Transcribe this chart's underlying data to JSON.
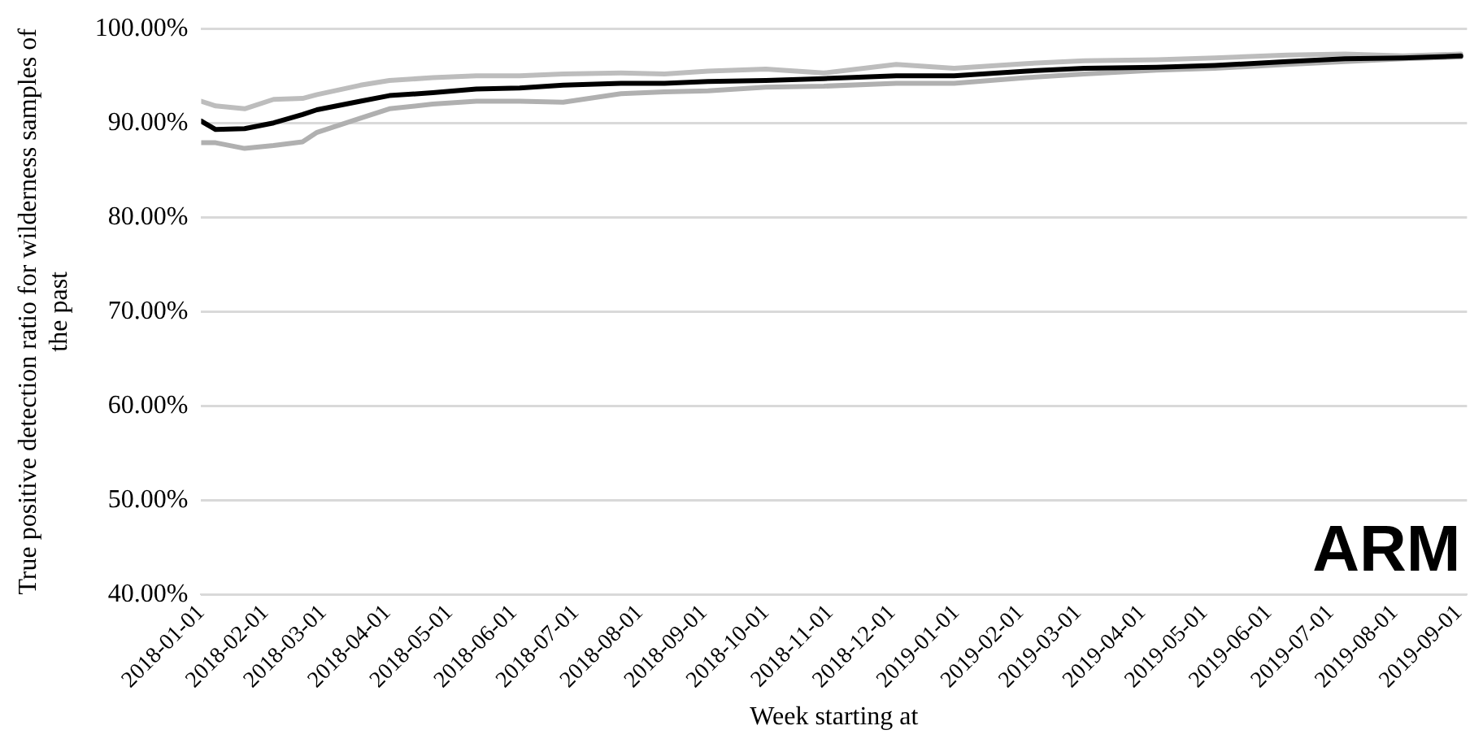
{
  "chart_data": {
    "type": "line",
    "xlabel": "Week starting at",
    "ylabel": "True positive detection ratio for wilderness samples of the past",
    "annotations": [
      "ARM"
    ],
    "x": [
      "2018-01-01",
      "2018-01-08",
      "2018-01-22",
      "2018-02-05",
      "2018-02-19",
      "2018-02-26",
      "2018-03-19",
      "2018-04-02",
      "2018-04-23",
      "2018-05-14",
      "2018-06-04",
      "2018-06-25",
      "2018-07-23",
      "2018-08-13",
      "2018-09-03",
      "2018-10-01",
      "2018-10-29",
      "2018-12-03",
      "2018-12-31",
      "2019-02-04",
      "2019-03-04",
      "2019-04-08",
      "2019-05-06",
      "2019-06-10",
      "2019-07-08",
      "2019-08-05",
      "2019-09-02"
    ],
    "series": [
      {
        "color": "#bdbdbd",
        "values": [
          92.3,
          91.8,
          91.5,
          92.5,
          92.6,
          93.0,
          94.0,
          94.5,
          94.8,
          95.0,
          95.0,
          95.2,
          95.3,
          95.2,
          95.5,
          95.7,
          95.3,
          96.2,
          95.8,
          96.3,
          96.6,
          96.7,
          96.9,
          97.2,
          97.3,
          97.1,
          97.3
        ]
      },
      {
        "color": "#b0b0b0",
        "values": [
          87.9,
          87.9,
          87.3,
          87.6,
          88.0,
          89.0,
          90.5,
          91.5,
          92.0,
          92.3,
          92.3,
          92.2,
          93.1,
          93.3,
          93.4,
          93.8,
          93.9,
          94.2,
          94.2,
          94.8,
          95.2,
          95.6,
          95.8,
          96.2,
          96.5,
          96.8,
          97.0
        ]
      },
      {
        "color": "#000000",
        "values": [
          90.2,
          89.3,
          89.4,
          90.0,
          90.9,
          91.4,
          92.3,
          92.9,
          93.2,
          93.6,
          93.7,
          94.0,
          94.2,
          94.2,
          94.4,
          94.5,
          94.7,
          95.0,
          95.0,
          95.5,
          95.8,
          95.9,
          96.1,
          96.5,
          96.8,
          96.9,
          97.1
        ]
      }
    ],
    "xlim": [
      "2018-01-01",
      "2019-09-05"
    ],
    "xticks": [
      "2018-01-01",
      "2018-02-01",
      "2018-03-01",
      "2018-04-01",
      "2018-05-01",
      "2018-06-01",
      "2018-07-01",
      "2018-08-01",
      "2018-09-01",
      "2018-10-01",
      "2018-11-01",
      "2018-12-01",
      "2019-01-01",
      "2019-02-01",
      "2019-03-01",
      "2019-04-01",
      "2019-05-01",
      "2019-06-01",
      "2019-07-01",
      "2019-08-01",
      "2019-09-01"
    ],
    "ylim": [
      40,
      100
    ],
    "yticks": [
      {
        "value": 40,
        "label": "40.00%"
      },
      {
        "value": 50,
        "label": "50.00%"
      },
      {
        "value": 60,
        "label": "60.00%"
      },
      {
        "value": 70,
        "label": "70.00%"
      },
      {
        "value": 80,
        "label": "80.00%"
      },
      {
        "value": 90,
        "label": "90.00%"
      },
      {
        "value": 100,
        "label": "100.00%"
      }
    ],
    "grid": "y",
    "legend": false,
    "marker": "none",
    "line_style": "solid"
  }
}
